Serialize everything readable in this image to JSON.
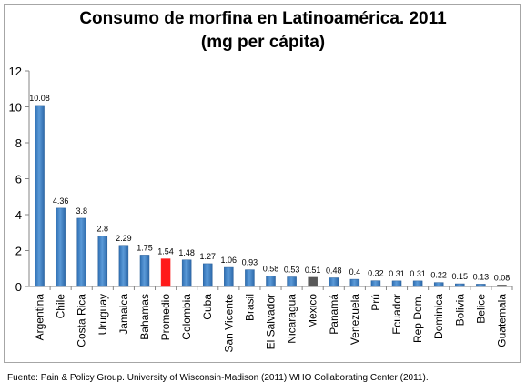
{
  "chart_data": {
    "type": "bar",
    "title": "Consumo de morfina en Latinoamérica. 2011",
    "subtitle": "(mg per cápita)",
    "xlabel": "",
    "ylabel": "",
    "ylim": [
      0,
      12
    ],
    "yticks": [
      "0",
      "2",
      "4",
      "6",
      "8",
      "10",
      "12"
    ],
    "grid": false,
    "legend": "none",
    "categories": [
      "Argentina",
      "Chile",
      "Costa Rica",
      "Uruguay",
      "Jamaica",
      "Bahamas",
      "Promedio",
      "Colombia",
      "Cuba",
      "San Vicente",
      "Brasil",
      "El Salvador",
      "Nicaragua",
      "México",
      "Panamá",
      "Venezuela",
      "Prú",
      "Ecuador",
      "Rep Dom.",
      "Dominica",
      "Bolivia",
      "Belice",
      "Guatemala"
    ],
    "values": [
      10.08,
      4.36,
      3.8,
      2.8,
      2.29,
      1.75,
      1.54,
      1.48,
      1.27,
      1.06,
      0.93,
      0.58,
      0.53,
      0.51,
      0.48,
      0.4,
      0.32,
      0.31,
      0.31,
      0.22,
      0.15,
      0.13,
      0.08
    ],
    "data_labels": [
      "10.08",
      "4.36",
      "3.8",
      "2.8",
      "2.29",
      "1.75",
      "1.54",
      "1.48",
      "1.27",
      "1.06",
      "0.93",
      "0.58",
      "0.53",
      "0.51",
      "0.48",
      "0.4",
      "0.32",
      "0.31",
      "0.31",
      "0.22",
      "0.15",
      "0.13",
      "0.08"
    ],
    "colors": {
      "default": "#4a86c8",
      "highlight": {
        "Promedio": "#ff1a1a",
        "México": "#595959",
        "Guatemala": "#595959"
      }
    }
  },
  "source": "Fuente: Pain & Policy Group. University of Wisconsin-Madison (2011).WHO Collaborating Center (2011)."
}
